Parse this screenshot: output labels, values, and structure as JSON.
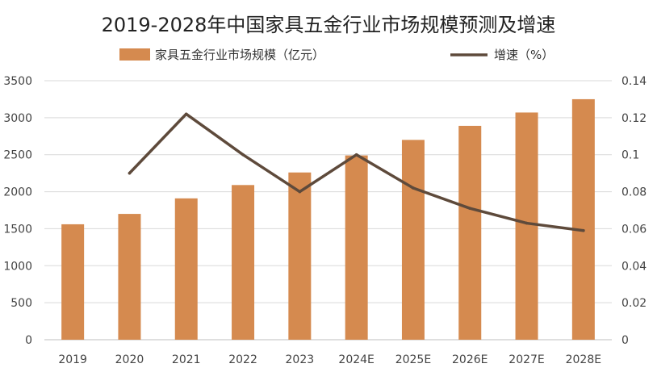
{
  "chart_data": {
    "type": "bar",
    "title": "2019-2028年中国家具五金行业市场规模预测及增速",
    "categories": [
      "2019",
      "2020",
      "2021",
      "2022",
      "2023",
      "2024E",
      "2025E",
      "2026E",
      "2027E",
      "2028E"
    ],
    "series": [
      {
        "name": "家具五金行业市场规模（亿元）",
        "type": "bar",
        "axis": "left",
        "color": "#D58A4F",
        "values": [
          1560,
          1700,
          1910,
          2090,
          2260,
          2490,
          2700,
          2890,
          3070,
          3250
        ]
      },
      {
        "name": "增速（%）",
        "type": "line",
        "axis": "right",
        "color": "#5E4A3B",
        "values": [
          null,
          0.09,
          0.122,
          0.1,
          0.08,
          0.1,
          0.082,
          0.071,
          0.063,
          0.059
        ]
      }
    ],
    "y_left": {
      "min": 0,
      "max": 3500,
      "ticks": [
        0,
        500,
        1000,
        1500,
        2000,
        2500,
        3000,
        3500
      ],
      "tick_labels": [
        "0",
        "500",
        "1000",
        "1500",
        "2000",
        "2500",
        "3000",
        "3500"
      ]
    },
    "y_right": {
      "min": 0,
      "max": 0.14,
      "ticks": [
        0,
        0.02,
        0.04,
        0.06,
        0.08,
        0.1,
        0.12,
        0.14
      ],
      "tick_labels": [
        "0",
        "0.02",
        "0.04",
        "0.06",
        "0.08",
        "0.1",
        "0.12",
        "0.14"
      ]
    },
    "grid": true,
    "legend": "top"
  }
}
